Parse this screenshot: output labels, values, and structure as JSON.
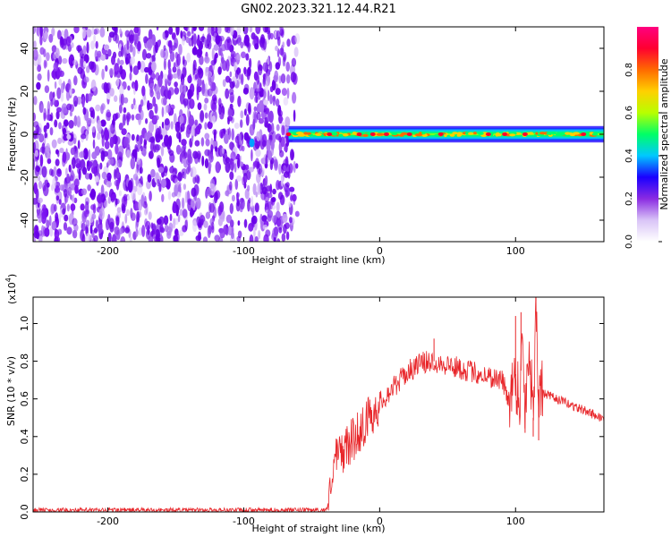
{
  "figure": {
    "title": "GN02.2023.321.12.44.R21"
  },
  "chart_data": [
    {
      "type": "heatmap",
      "title": "GN02.2023.321.12.44.R21",
      "xlabel": "Height of straight line (km)",
      "ylabel": "Frequency (Hz)",
      "xlim": [
        -255,
        165
      ],
      "ylim": [
        -50,
        50
      ],
      "xticks": [
        -200,
        -100,
        0,
        100
      ],
      "yticks": [
        -40,
        -20,
        0,
        20,
        40
      ],
      "noise_region_x": [
        -255,
        -67
      ],
      "signal_band": {
        "x_start": -67,
        "x_end": 165,
        "center_freq_hz": 0,
        "half_width_hz": 3,
        "peak_x": [
          -67,
          -37,
          -15,
          -5,
          5,
          22,
          45,
          80,
          92,
          107,
          150
        ]
      },
      "colorbar": {
        "label": "Normalized spectral amplitude",
        "range": [
          0.0,
          1.0
        ],
        "ticks": [
          "0.0",
          "0.2",
          "0.4",
          "0.6",
          "0.8"
        ],
        "colormap": [
          "#ffffff",
          "#d9c4f7",
          "#8a2be2",
          "#1a00ff",
          "#00c8ff",
          "#00ff66",
          "#b8ff00",
          "#ffd000",
          "#ff6a00",
          "#ff0030",
          "#ff007f"
        ]
      },
      "grid": false
    },
    {
      "type": "line",
      "xlabel": "Height of straight line (km)",
      "ylabel": "SNR (10 * v/v)",
      "scale_label": "(x10",
      "scale_exp": "4",
      "scale_suffix": ")",
      "xlim": [
        -255,
        165
      ],
      "ylim": [
        0,
        1.14
      ],
      "xticks": [
        -200,
        -100,
        0,
        100
      ],
      "yticks": [
        "0.0",
        "0.2",
        "0.4",
        "0.6",
        "0.8",
        "1.0"
      ],
      "series_color": "#e8262a",
      "series": [
        {
          "x": [
            -255,
            -220,
            -180,
            -140,
            -100,
            -60,
            -45,
            -40,
            -37,
            -35,
            -30,
            -20,
            -10,
            0,
            10,
            20,
            30,
            40,
            45,
            50,
            60,
            70,
            80,
            90,
            95,
            100,
            103,
            105,
            107,
            110,
            113,
            115,
            117,
            120,
            130,
            140,
            150,
            160,
            165
          ],
          "y": [
            0.01,
            0.01,
            0.01,
            0.01,
            0.01,
            0.01,
            0.01,
            0.01,
            0.05,
            0.25,
            0.3,
            0.38,
            0.48,
            0.58,
            0.66,
            0.74,
            0.79,
            0.8,
            0.79,
            0.78,
            0.76,
            0.74,
            0.72,
            0.7,
            0.6,
            0.72,
            0.6,
            0.9,
            0.55,
            0.9,
            0.5,
            1.12,
            0.65,
            0.63,
            0.6,
            0.57,
            0.54,
            0.51,
            0.49
          ],
          "spikes": [
            {
              "x": 40,
              "y": 0.92
            },
            {
              "x": 100,
              "y": 1.04
            },
            {
              "x": 104,
              "y": 1.06
            },
            {
              "x": 107,
              "y": 0.42
            },
            {
              "x": 113,
              "y": 0.4
            },
            {
              "x": 115,
              "y": 1.14
            },
            {
              "x": 117,
              "y": 0.38
            }
          ]
        }
      ],
      "grid": false
    }
  ]
}
